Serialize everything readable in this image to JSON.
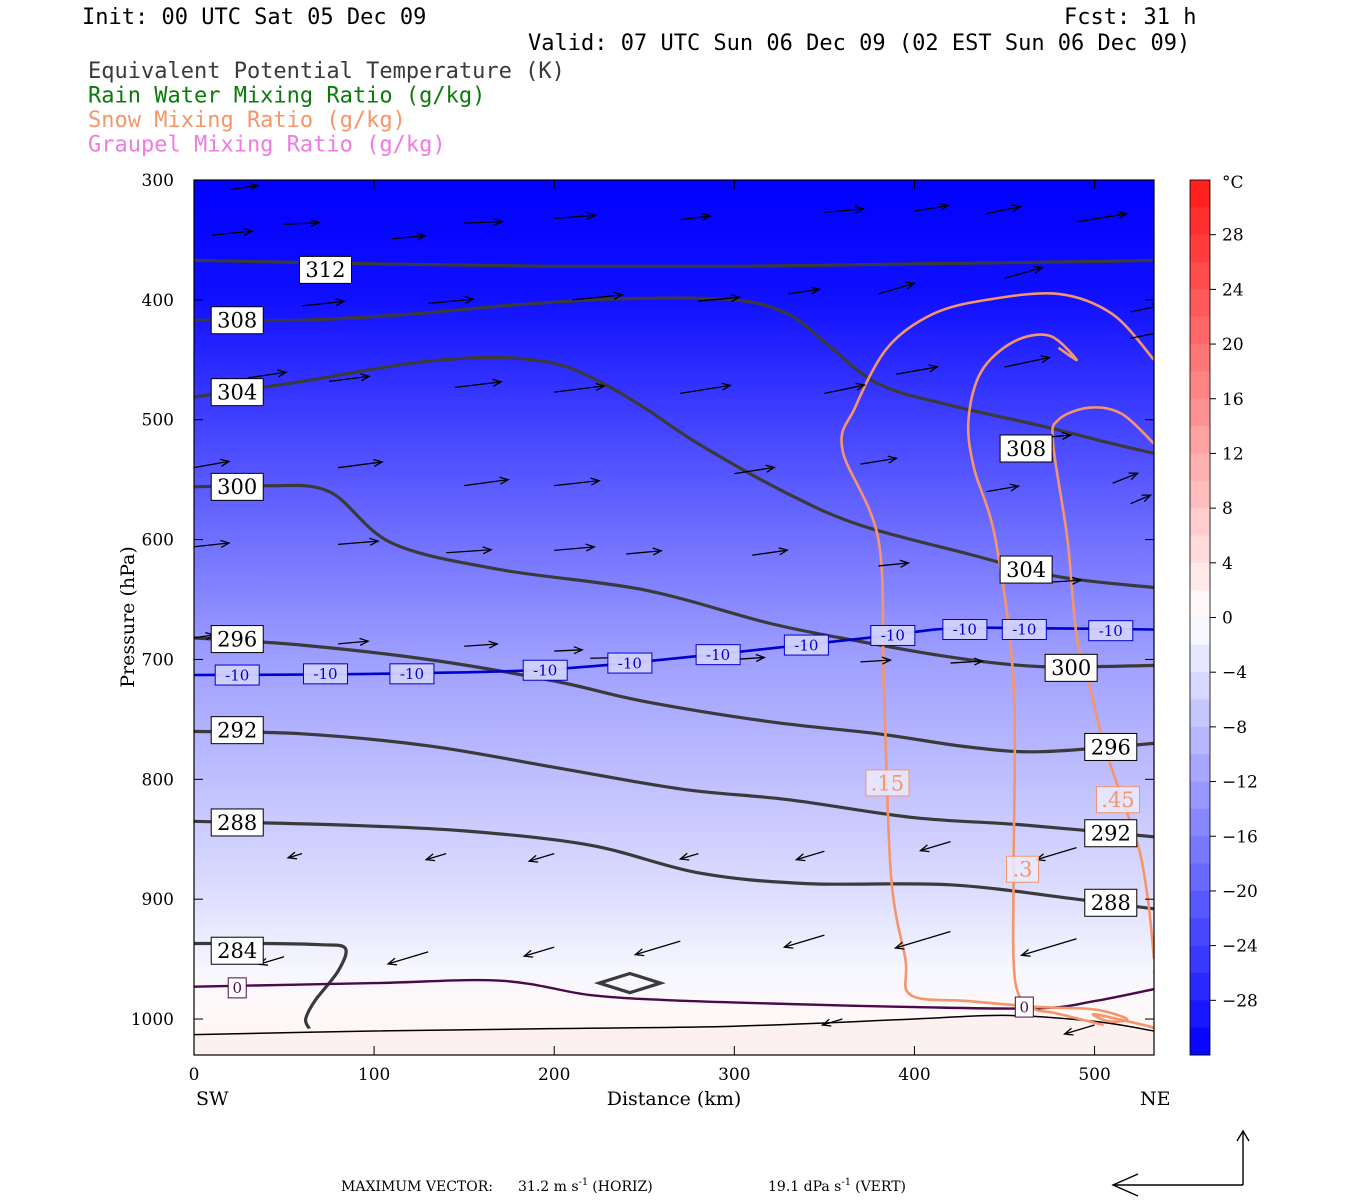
{
  "header": {
    "init": "Init: 00 UTC Sat 05 Dec 09",
    "fcst": "Fcst:   31 h",
    "valid": "Valid: 07 UTC Sun 06 Dec 09 (02 EST Sun 06 Dec 09)",
    "fields": [
      {
        "label": "Equivalent Potential Temperature (K)",
        "color": "#3a3a3a"
      },
      {
        "label": "Rain Water Mixing Ratio (g/kg)",
        "color": "#0a7a0a"
      },
      {
        "label": "Snow Mixing Ratio (g/kg)",
        "color": "#f4956a"
      },
      {
        "label": "Graupel Mixing Ratio (g/kg)",
        "color": "#f07ae0"
      }
    ]
  },
  "chart_data": {
    "type": "cross-section",
    "xlabel": "Distance (km)",
    "ylabel": "Pressure (hPa)",
    "xlim": [
      0,
      533
    ],
    "ylim": [
      1030,
      300
    ],
    "x_ticks": [
      0,
      100,
      200,
      300,
      400,
      500
    ],
    "y_ticks": [
      300,
      400,
      500,
      600,
      700,
      800,
      900,
      1000
    ],
    "left_end": "SW",
    "right_end": "NE",
    "colorbar": {
      "unit": "°C",
      "tick_values": [
        28,
        24,
        20,
        16,
        12,
        8,
        4,
        0,
        -4,
        -8,
        -12,
        -16,
        -20,
        -24,
        -28
      ],
      "range": [
        -32,
        32
      ]
    },
    "temperature_shading": [
      {
        "p": 300,
        "t": -32
      },
      {
        "p": 400,
        "t": -30
      },
      {
        "p": 500,
        "t": -24
      },
      {
        "p": 600,
        "t": -18
      },
      {
        "p": 700,
        "t": -12
      },
      {
        "p": 800,
        "t": -8
      },
      {
        "p": 900,
        "t": -4
      },
      {
        "p": 960,
        "t": -1
      },
      {
        "p": 1000,
        "t": 1
      },
      {
        "p": 1030,
        "t": 2
      }
    ],
    "theta_e_contours": [
      {
        "label": "312",
        "points": [
          [
            0,
            367
          ],
          [
            100,
            370
          ],
          [
            200,
            372
          ],
          [
            300,
            372
          ],
          [
            400,
            370
          ],
          [
            500,
            368
          ],
          [
            533,
            367
          ]
        ],
        "labels_at": [
          [
            73,
            375
          ]
        ]
      },
      {
        "label": "308",
        "points": [
          [
            0,
            417
          ],
          [
            60,
            417
          ],
          [
            120,
            412
          ],
          [
            180,
            404
          ],
          [
            240,
            399
          ],
          [
            300,
            400
          ],
          [
            330,
            412
          ],
          [
            350,
            435
          ],
          [
            380,
            470
          ],
          [
            420,
            488
          ],
          [
            470,
            505
          ],
          [
            510,
            520
          ],
          [
            533,
            528
          ]
        ],
        "labels_at": [
          [
            24,
            417
          ],
          [
            462,
            524
          ]
        ]
      },
      {
        "label": "304",
        "points": [
          [
            0,
            481
          ],
          [
            60,
            468
          ],
          [
            120,
            453
          ],
          [
            165,
            448
          ],
          [
            200,
            453
          ],
          [
            225,
            468
          ],
          [
            250,
            490
          ],
          [
            280,
            520
          ],
          [
            330,
            562
          ],
          [
            370,
            588
          ],
          [
            430,
            612
          ],
          [
            480,
            631
          ],
          [
            533,
            640
          ]
        ],
        "labels_at": [
          [
            24,
            477
          ],
          [
            462,
            625
          ]
        ]
      },
      {
        "label": "300",
        "points": [
          [
            0,
            556
          ],
          [
            40,
            555
          ],
          [
            75,
            560
          ],
          [
            110,
            603
          ],
          [
            170,
            625
          ],
          [
            250,
            642
          ],
          [
            320,
            670
          ],
          [
            370,
            685
          ],
          [
            420,
            698
          ],
          [
            470,
            706
          ],
          [
            533,
            705
          ]
        ],
        "labels_at": [
          [
            24,
            556
          ],
          [
            487,
            707
          ]
        ]
      },
      {
        "label": "296",
        "points": [
          [
            0,
            682
          ],
          [
            60,
            688
          ],
          [
            130,
            700
          ],
          [
            200,
            718
          ],
          [
            250,
            735
          ],
          [
            320,
            752
          ],
          [
            380,
            762
          ],
          [
            430,
            773
          ],
          [
            470,
            777
          ],
          [
            533,
            770
          ]
        ],
        "labels_at": [
          [
            24,
            683
          ],
          [
            509,
            773
          ]
        ]
      },
      {
        "label": "292",
        "points": [
          [
            0,
            760
          ],
          [
            60,
            762
          ],
          [
            130,
            772
          ],
          [
            200,
            790
          ],
          [
            270,
            808
          ],
          [
            330,
            817
          ],
          [
            400,
            832
          ],
          [
            460,
            838
          ],
          [
            533,
            848
          ]
        ],
        "labels_at": [
          [
            24,
            759
          ],
          [
            509,
            845
          ]
        ]
      },
      {
        "label": "288",
        "points": [
          [
            0,
            835
          ],
          [
            80,
            838
          ],
          [
            150,
            843
          ],
          [
            220,
            855
          ],
          [
            280,
            878
          ],
          [
            340,
            887
          ],
          [
            420,
            888
          ],
          [
            490,
            900
          ],
          [
            533,
            908
          ]
        ],
        "labels_at": [
          [
            24,
            836
          ],
          [
            509,
            903
          ]
        ]
      },
      {
        "label": "284",
        "points": [
          [
            0,
            937
          ],
          [
            40,
            937
          ],
          [
            70,
            938
          ],
          [
            84,
            941
          ],
          [
            80,
            960
          ],
          [
            67,
            985
          ],
          [
            62,
            1000
          ],
          [
            64,
            1008
          ]
        ],
        "labels_at": [
          [
            24,
            943
          ]
        ]
      }
    ],
    "isotherm_minus10": {
      "label": "-10",
      "points": [
        [
          0,
          713
        ],
        [
          100,
          712
        ],
        [
          200,
          708
        ],
        [
          300,
          694
        ],
        [
          380,
          681
        ],
        [
          420,
          674
        ],
        [
          470,
          674
        ],
        [
          533,
          675
        ]
      ],
      "labels_at": [
        [
          24,
          713
        ],
        [
          73,
          712
        ],
        [
          121,
          712
        ],
        [
          195,
          709
        ],
        [
          242,
          703
        ],
        [
          291,
          696
        ],
        [
          340,
          688
        ],
        [
          388,
          680
        ],
        [
          428,
          675
        ],
        [
          461,
          675
        ],
        [
          509,
          676
        ]
      ]
    },
    "isotherm_0": {
      "label": "0",
      "points": [
        [
          0,
          973
        ],
        [
          100,
          970
        ],
        [
          170,
          968
        ],
        [
          220,
          980
        ],
        [
          260,
          984
        ],
        [
          320,
          987
        ],
        [
          400,
          990
        ],
        [
          470,
          991
        ],
        [
          500,
          985
        ],
        [
          533,
          975
        ]
      ],
      "labels_at": [
        [
          24,
          974
        ],
        [
          461,
          990
        ]
      ]
    },
    "snow_contours": [
      {
        "label": ".15",
        "points": [
          [
            533,
            450
          ],
          [
            510,
            412
          ],
          [
            480,
            395
          ],
          [
            440,
            400
          ],
          [
            410,
            412
          ],
          [
            385,
            440
          ],
          [
            367,
            490
          ],
          [
            360,
            525
          ],
          [
            380,
            600
          ],
          [
            383,
            720
          ],
          [
            387,
            880
          ],
          [
            395,
            950
          ],
          [
            398,
            980
          ],
          [
            430,
            985
          ],
          [
            470,
            990
          ],
          [
            500,
            992
          ],
          [
            518,
            1000
          ],
          [
            508,
            1002
          ],
          [
            500,
            996
          ],
          [
            530,
            1006
          ],
          [
            540,
            1010
          ],
          [
            533,
            960
          ]
        ],
        "labels_at": [
          [
            385,
            803
          ]
        ]
      },
      {
        "label": ".3",
        "points": [
          [
            505,
            1005
          ],
          [
            478,
            995
          ],
          [
            467,
            992
          ],
          [
            458,
            980
          ],
          [
            455,
            950
          ],
          [
            455,
            880
          ],
          [
            455,
            720
          ],
          [
            445,
            600
          ],
          [
            433,
            540
          ],
          [
            430,
            500
          ],
          [
            437,
            460
          ],
          [
            455,
            435
          ],
          [
            475,
            430
          ],
          [
            490,
            450
          ],
          [
            480,
            440
          ]
        ],
        "labels_at": [
          [
            460,
            875
          ]
        ]
      },
      {
        "label": ".45",
        "points": [
          [
            533,
            950
          ],
          [
            530,
            905
          ],
          [
            525,
            860
          ],
          [
            515,
            815
          ],
          [
            505,
            770
          ],
          [
            497,
            720
          ],
          [
            490,
            680
          ],
          [
            485,
            600
          ],
          [
            477,
            520
          ],
          [
            480,
            500
          ],
          [
            497,
            490
          ],
          [
            515,
            495
          ],
          [
            533,
            520
          ]
        ],
        "labels_at": [
          [
            513,
            817
          ]
        ]
      }
    ],
    "wind_vectors": [
      [
        10,
        346,
        40,
        16
      ],
      [
        20,
        308,
        28,
        16
      ],
      [
        110,
        349,
        33,
        12
      ],
      [
        50,
        337,
        35,
        7
      ],
      [
        150,
        336,
        38,
        6
      ],
      [
        200,
        332,
        41,
        12
      ],
      [
        270,
        333,
        30,
        14
      ],
      [
        350,
        327,
        39,
        14
      ],
      [
        400,
        326,
        34,
        23
      ],
      [
        440,
        328,
        34,
        28
      ],
      [
        490,
        335,
        50,
        33
      ],
      [
        10,
        412,
        35,
        20
      ],
      [
        60,
        405,
        42,
        18
      ],
      [
        130,
        403,
        45,
        17
      ],
      [
        210,
        400,
        50,
        20
      ],
      [
        280,
        401,
        41,
        15
      ],
      [
        330,
        395,
        31,
        18
      ],
      [
        380,
        395,
        36,
        42
      ],
      [
        450,
        382,
        38,
        43
      ],
      [
        520,
        410,
        30,
        25
      ],
      [
        30,
        465,
        38,
        22
      ],
      [
        75,
        468,
        40,
        20
      ],
      [
        145,
        473,
        46,
        22
      ],
      [
        200,
        477,
        50,
        25
      ],
      [
        270,
        478,
        50,
        32
      ],
      [
        350,
        478,
        40,
        33
      ],
      [
        390,
        462,
        41,
        29
      ],
      [
        450,
        456,
        45,
        38
      ],
      [
        520,
        432,
        35,
        28
      ],
      [
        0,
        540,
        35,
        25
      ],
      [
        80,
        540,
        44,
        23
      ],
      [
        150,
        555,
        44,
        24
      ],
      [
        200,
        555,
        45,
        20
      ],
      [
        300,
        545,
        40,
        25
      ],
      [
        370,
        537,
        36,
        23
      ],
      [
        440,
        560,
        32,
        22
      ],
      [
        470,
        515,
        30,
        10
      ],
      [
        510,
        553,
        25,
        40
      ],
      [
        0,
        606,
        35,
        15
      ],
      [
        80,
        604,
        40,
        13
      ],
      [
        140,
        611,
        45,
        12
      ],
      [
        200,
        609,
        40,
        14
      ],
      [
        240,
        612,
        35,
        13
      ],
      [
        310,
        613,
        35,
        20
      ],
      [
        380,
        622,
        30,
        12
      ],
      [
        470,
        636,
        40,
        10
      ],
      [
        0,
        682,
        20,
        12
      ],
      [
        80,
        687,
        30,
        11
      ],
      [
        150,
        689,
        33,
        9
      ],
      [
        200,
        693,
        28,
        5
      ],
      [
        220,
        699,
        34,
        3
      ],
      [
        300,
        700,
        30,
        8
      ],
      [
        370,
        702,
        30,
        7
      ],
      [
        420,
        703,
        32,
        8
      ],
      [
        520,
        570,
        20,
        34
      ]
    ]
  },
  "footer": {
    "max_vector_label": "MAXIMUM VECTOR:",
    "horiz_value": "31.2 m s",
    "horiz_exp": "-1",
    "horiz_tag": "(HORIZ)",
    "vert_value": "19.1 dPa s",
    "vert_exp": "-1",
    "vert_tag": "(VERT)"
  },
  "colors": {
    "theta_e": "#3a3a3a",
    "isotherm": "#0000cc",
    "isotherm_zero": "#4a0a4a",
    "snow": "#f4956a",
    "wind": "#000000"
  }
}
